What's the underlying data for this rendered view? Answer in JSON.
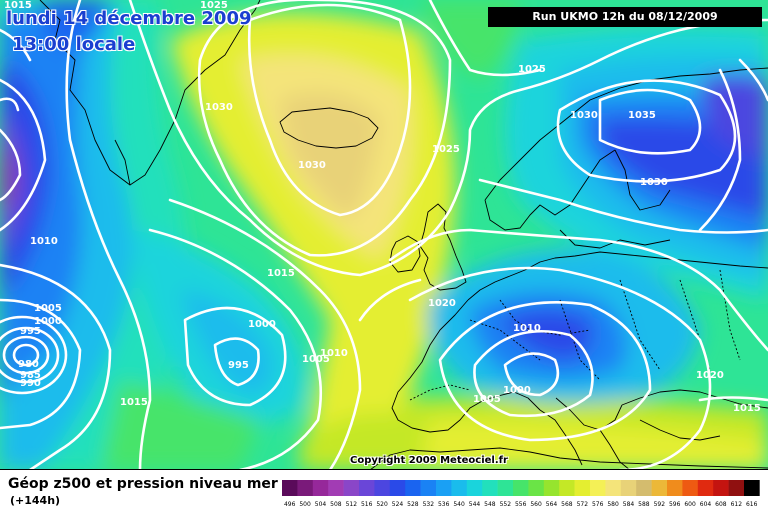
{
  "map": {
    "title_date": "lundi 14 décembre 2009",
    "title_time": "13:00 locale",
    "run_info": "Run UKMO 12h du 08/12/2009",
    "copyright": "Copyright 2009 Meteociel.fr",
    "bottom_title": "Géop z500 et pression niveau mer",
    "bottom_subtitle": "(+144h)",
    "isobar_labels": [
      {
        "text": "1025"
      },
      {
        "text": "1030"
      },
      {
        "text": "1030"
      },
      {
        "text": "1025"
      },
      {
        "text": "1025"
      },
      {
        "text": "1030"
      },
      {
        "text": "1035"
      },
      {
        "text": "1030"
      },
      {
        "text": "1015"
      },
      {
        "text": "1010"
      },
      {
        "text": "1005"
      },
      {
        "text": "1000"
      },
      {
        "text": "995"
      },
      {
        "text": "980"
      },
      {
        "text": "985"
      },
      {
        "text": "990"
      },
      {
        "text": "1015"
      },
      {
        "text": "1000"
      },
      {
        "text": "995"
      },
      {
        "text": "1005"
      },
      {
        "text": "1010"
      },
      {
        "text": "1015"
      },
      {
        "text": "1020"
      },
      {
        "text": "1010"
      },
      {
        "text": "1000"
      },
      {
        "text": "1005"
      },
      {
        "text": "1020"
      },
      {
        "text": "1015"
      }
    ],
    "colorbar": {
      "labels": [
        "496",
        "500",
        "504",
        "508",
        "512",
        "516",
        "520",
        "524",
        "528",
        "532",
        "536",
        "540",
        "544",
        "548",
        "552",
        "556",
        "560",
        "564",
        "568",
        "572",
        "576",
        "580",
        "584",
        "588",
        "592",
        "596",
        "600",
        "604",
        "608",
        "612",
        "616"
      ],
      "colors": [
        "#5a0a5a",
        "#7a1a7a",
        "#96289a",
        "#a23cb4",
        "#8a46c8",
        "#6a46d8",
        "#4c46e0",
        "#2a4ae8",
        "#1a64f0",
        "#1a82f4",
        "#1aa0f4",
        "#1abcec",
        "#1ad4dc",
        "#22e0bc",
        "#2ee496",
        "#46e46a",
        "#6ae446",
        "#96e42e",
        "#c4e826",
        "#e4ee30",
        "#f4f056",
        "#f4e47a",
        "#e8d278",
        "#d4bc6e",
        "#ecb838",
        "#f08c1c",
        "#ee5a12",
        "#e02a10",
        "#c41410",
        "#901010",
        "#000000"
      ]
    },
    "colors": {
      "label": "#ffffff",
      "isobar": "#ffffff",
      "coast": "#000000"
    }
  }
}
